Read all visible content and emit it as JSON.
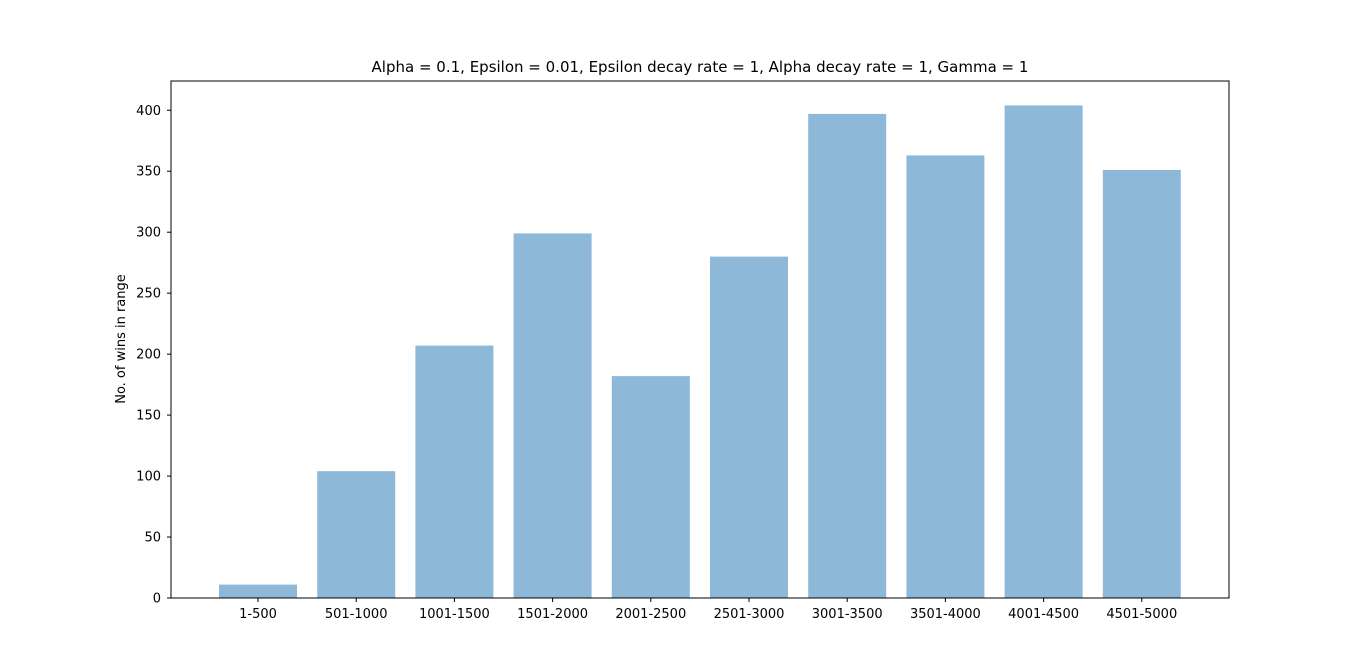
{
  "chart_data": {
    "type": "bar",
    "title": "Alpha = 0.1, Epsilon = 0.01, Epsilon decay rate = 1, Alpha decay rate = 1, Gamma = 1",
    "xlabel": "",
    "ylabel": "No. of wins in range",
    "categories": [
      "1-500",
      "501-1000",
      "1001-1500",
      "1501-2000",
      "2001-2500",
      "2501-3000",
      "3001-3500",
      "3501-4000",
      "4001-4500",
      "4501-5000"
    ],
    "values": [
      11,
      104,
      207,
      299,
      182,
      280,
      397,
      363,
      404,
      351
    ],
    "ylim": [
      0,
      424
    ],
    "yticks": [
      "0",
      "50",
      "100",
      "150",
      "200",
      "250",
      "300",
      "350",
      "400"
    ],
    "grid": false,
    "legend": "none",
    "bar_color": "#8db8d8",
    "axis_color": "#000000"
  }
}
